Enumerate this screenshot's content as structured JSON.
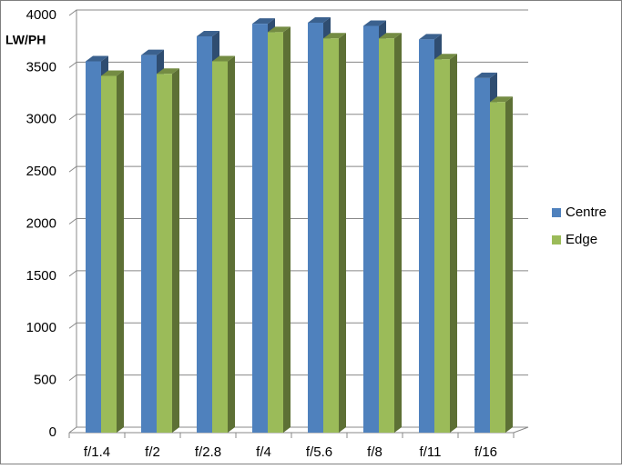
{
  "chart_data": {
    "type": "bar3d",
    "y_label": "LW/PH",
    "categories": [
      "f/1.4",
      "f/2",
      "f/2.8",
      "f/4",
      "f/5.6",
      "f/8",
      "f/11",
      "f/16"
    ],
    "series": [
      {
        "name": "Centre",
        "color": "#4f81bd",
        "values": [
          3560,
          3620,
          3800,
          3920,
          3930,
          3900,
          3770,
          3400
        ]
      },
      {
        "name": "Edge",
        "color": "#9bbb59",
        "values": [
          3420,
          3440,
          3560,
          3840,
          3780,
          3780,
          3580,
          3170
        ]
      }
    ],
    "ylim": [
      0,
      4000
    ],
    "yticks": [
      0,
      500,
      1000,
      1500,
      2000,
      2500,
      3000,
      3500,
      4000
    ],
    "grid": true,
    "legend": "right"
  }
}
